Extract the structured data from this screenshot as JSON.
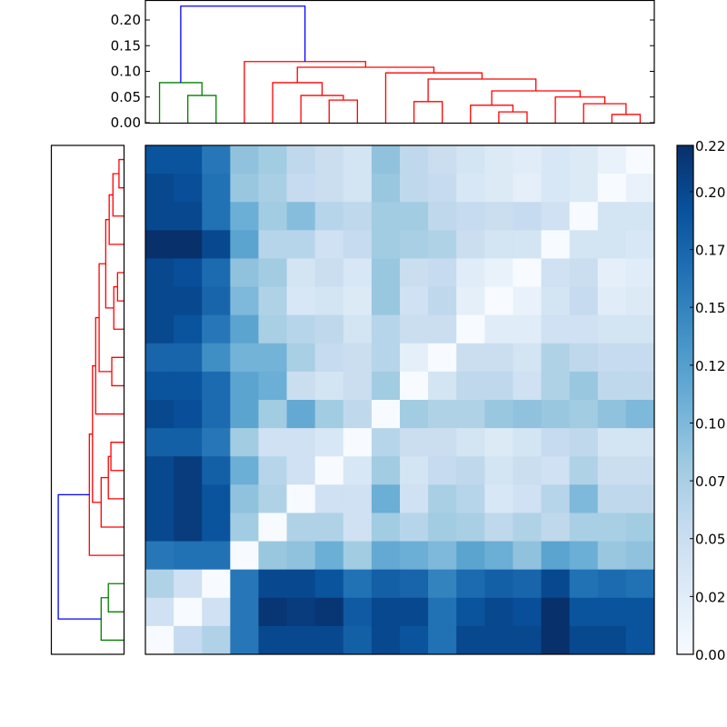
{
  "chart_data": {
    "type": "heatmap",
    "title": "",
    "xlabel": "",
    "ylabel": "",
    "n_rows": 18,
    "n_cols": 18,
    "colormap": "Blues",
    "vmin": 0.0,
    "vmax": 0.22,
    "colorbar": {
      "ticks": [
        0.0,
        0.025,
        0.05,
        0.075,
        0.1,
        0.125,
        0.15,
        0.175,
        0.2,
        0.22
      ],
      "tick_labels": [
        "0.00",
        "0.02",
        "0.05",
        "0.07",
        "0.10",
        "0.12",
        "0.15",
        "0.17",
        "0.20",
        "0.22"
      ]
    },
    "matrix": [
      [
        0.19,
        0.19,
        0.16,
        0.09,
        0.08,
        0.06,
        0.05,
        0.04,
        0.09,
        0.06,
        0.05,
        0.04,
        0.03,
        0.025,
        0.035,
        0.03,
        0.015,
        0.0
      ],
      [
        0.2,
        0.195,
        0.165,
        0.085,
        0.075,
        0.055,
        0.05,
        0.04,
        0.085,
        0.06,
        0.055,
        0.035,
        0.03,
        0.02,
        0.035,
        0.03,
        0.0,
        0.015
      ],
      [
        0.2,
        0.2,
        0.165,
        0.11,
        0.08,
        0.095,
        0.065,
        0.06,
        0.08,
        0.08,
        0.06,
        0.055,
        0.05,
        0.055,
        0.045,
        0.0,
        0.04,
        0.04
      ],
      [
        0.22,
        0.22,
        0.2,
        0.12,
        0.065,
        0.065,
        0.045,
        0.055,
        0.08,
        0.075,
        0.07,
        0.05,
        0.04,
        0.04,
        0.0,
        0.04,
        0.04,
        0.035
      ],
      [
        0.2,
        0.195,
        0.17,
        0.09,
        0.08,
        0.04,
        0.05,
        0.035,
        0.085,
        0.05,
        0.055,
        0.025,
        0.015,
        0.0,
        0.045,
        0.05,
        0.02,
        0.025
      ],
      [
        0.2,
        0.2,
        0.175,
        0.1,
        0.07,
        0.035,
        0.04,
        0.03,
        0.085,
        0.045,
        0.06,
        0.02,
        0.0,
        0.015,
        0.04,
        0.055,
        0.025,
        0.03
      ],
      [
        0.2,
        0.19,
        0.16,
        0.12,
        0.075,
        0.065,
        0.06,
        0.04,
        0.065,
        0.05,
        0.05,
        0.0,
        0.025,
        0.025,
        0.045,
        0.045,
        0.04,
        0.04
      ],
      [
        0.175,
        0.175,
        0.14,
        0.105,
        0.105,
        0.075,
        0.055,
        0.05,
        0.065,
        0.02,
        0.0,
        0.05,
        0.05,
        0.04,
        0.07,
        0.06,
        0.055,
        0.055
      ],
      [
        0.19,
        0.19,
        0.17,
        0.12,
        0.11,
        0.05,
        0.04,
        0.05,
        0.08,
        0.0,
        0.04,
        0.06,
        0.06,
        0.045,
        0.07,
        0.085,
        0.06,
        0.06
      ],
      [
        0.2,
        0.195,
        0.17,
        0.12,
        0.08,
        0.115,
        0.08,
        0.06,
        0.0,
        0.08,
        0.07,
        0.07,
        0.085,
        0.09,
        0.085,
        0.08,
        0.09,
        0.1
      ],
      [
        0.18,
        0.18,
        0.16,
        0.08,
        0.045,
        0.045,
        0.035,
        0.0,
        0.065,
        0.05,
        0.05,
        0.04,
        0.03,
        0.04,
        0.055,
        0.06,
        0.04,
        0.04
      ],
      [
        0.2,
        0.21,
        0.18,
        0.11,
        0.065,
        0.045,
        0.0,
        0.035,
        0.08,
        0.04,
        0.055,
        0.06,
        0.04,
        0.05,
        0.045,
        0.07,
        0.05,
        0.05
      ],
      [
        0.2,
        0.21,
        0.19,
        0.09,
        0.07,
        0.0,
        0.045,
        0.045,
        0.11,
        0.045,
        0.075,
        0.065,
        0.035,
        0.045,
        0.065,
        0.1,
        0.06,
        0.06
      ],
      [
        0.2,
        0.21,
        0.19,
        0.08,
        0.0,
        0.07,
        0.07,
        0.045,
        0.08,
        0.065,
        0.08,
        0.075,
        0.06,
        0.07,
        0.06,
        0.075,
        0.075,
        0.08
      ],
      [
        0.16,
        0.165,
        0.165,
        0.0,
        0.085,
        0.09,
        0.11,
        0.08,
        0.115,
        0.11,
        0.1,
        0.12,
        0.11,
        0.09,
        0.12,
        0.11,
        0.085,
        0.09
      ],
      [
        0.07,
        0.045,
        0.0,
        0.16,
        0.2,
        0.2,
        0.19,
        0.165,
        0.18,
        0.175,
        0.15,
        0.17,
        0.18,
        0.175,
        0.2,
        0.165,
        0.17,
        0.165
      ],
      [
        0.045,
        0.0,
        0.045,
        0.16,
        0.215,
        0.21,
        0.215,
        0.185,
        0.2,
        0.2,
        0.165,
        0.19,
        0.2,
        0.195,
        0.22,
        0.19,
        0.19,
        0.19
      ],
      [
        0.0,
        0.055,
        0.07,
        0.16,
        0.2,
        0.2,
        0.2,
        0.18,
        0.2,
        0.19,
        0.165,
        0.2,
        0.2,
        0.2,
        0.22,
        0.2,
        0.2,
        0.19
      ]
    ],
    "top_dendrogram": {
      "orientation": "top",
      "y_axis": {
        "ticks": [
          0.0,
          0.05,
          0.1,
          0.15,
          0.2
        ],
        "tick_labels": [
          "0.00",
          "0.05",
          "0.10",
          "0.15",
          "0.20"
        ],
        "ylim": [
          0.0,
          0.24
        ]
      },
      "colors": {
        "cluster_a": "#008000",
        "cluster_b": "#ff0000",
        "root": "#0000ff"
      },
      "links": [
        {
          "leaves": [
            1,
            2
          ],
          "height": 0.053,
          "color": "#008000"
        },
        {
          "leaves": [
            0,
            "1-2"
          ],
          "height": 0.078,
          "color": "#008000"
        },
        {
          "leaves": [
            6,
            7
          ],
          "height": 0.044,
          "color": "#ff0000"
        },
        {
          "leaves": [
            5,
            "6-7"
          ],
          "height": 0.053,
          "color": "#ff0000"
        },
        {
          "leaves": [
            4,
            "5-7"
          ],
          "height": 0.078,
          "color": "#ff0000"
        },
        {
          "leaves": [
            9,
            10
          ],
          "height": 0.041,
          "color": "#ff0000"
        },
        {
          "leaves": [
            12,
            13
          ],
          "height": 0.021,
          "color": "#ff0000"
        },
        {
          "leaves": [
            11,
            "12-13"
          ],
          "height": 0.034,
          "color": "#ff0000"
        },
        {
          "leaves": [
            16,
            17
          ],
          "height": 0.016,
          "color": "#ff0000"
        },
        {
          "leaves": [
            15,
            "16-17"
          ],
          "height": 0.037,
          "color": "#ff0000"
        },
        {
          "leaves": [
            14,
            "15-17"
          ],
          "height": 0.05,
          "color": "#ff0000"
        },
        {
          "leaves": [
            "11-13",
            "14-17"
          ],
          "height": 0.062,
          "color": "#ff0000"
        },
        {
          "leaves": [
            "9-10",
            "11-17"
          ],
          "height": 0.085,
          "color": "#ff0000"
        },
        {
          "leaves": [
            8,
            "9-17"
          ],
          "height": 0.097,
          "color": "#ff0000"
        },
        {
          "leaves": [
            "4-7",
            "8-17"
          ],
          "height": 0.108,
          "color": "#ff0000"
        },
        {
          "leaves": [
            3,
            "4-17"
          ],
          "height": 0.119,
          "color": "#ff0000"
        },
        {
          "leaves": [
            "0-2",
            "3-17"
          ],
          "height": 0.227,
          "color": "#0000ff"
        }
      ]
    },
    "left_dendrogram": {
      "orientation": "left",
      "note": "same clustering tree drawn vertically; leaves are matrix rows top-to-bottom",
      "colors": {
        "cluster_a": "#008000",
        "cluster_b": "#ff0000",
        "root": "#0000ff"
      }
    }
  }
}
